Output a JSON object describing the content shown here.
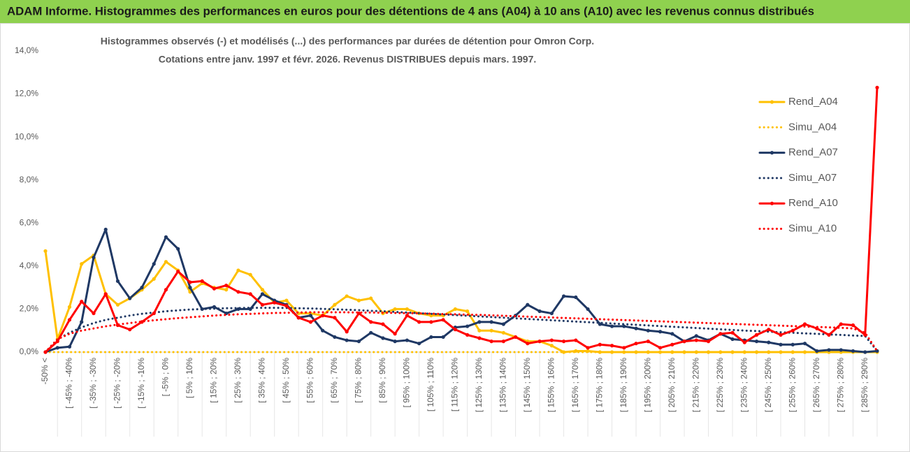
{
  "header": {
    "title": "ADAM Informe. Histogrammes des performances en euros pour des détentions de 4 ans (A04) à 10 ans (A10) avec les revenus connus distribués"
  },
  "chart_data": {
    "type": "line",
    "title": "Histogrammes observés (-) et modélisés (...) des performances par durées de détention pour Omron Corp.",
    "subtitle": "Cotations entre janv. 1997 et févr. 2026. Revenus DISTRIBUES depuis mars. 1997.",
    "categories": [
      "-50% <",
      null,
      "[ -45% ; -40%",
      null,
      "[ -35% ; -30%",
      null,
      "[ -25% ; -20%",
      null,
      "[ -15% ; -10%",
      null,
      "[ -5% ; 0%",
      null,
      "[ 5% ; 10%",
      null,
      "[ 15% ; 20%",
      null,
      "[ 25% ; 30%",
      null,
      "[ 35% ; 40%",
      null,
      "[ 45% ; 50%",
      null,
      "[ 55% ; 60%",
      null,
      "[ 65% ; 70%",
      null,
      "[ 75% ; 80%",
      null,
      "[ 85% ; 90%",
      null,
      "[ 95% ; 100%",
      null,
      "[ 105% ; 110%",
      null,
      "[ 115% ; 120%",
      null,
      "[ 125% ; 130%",
      null,
      "[ 135% ; 140%",
      null,
      "[ 145% ; 150%",
      null,
      "[ 155% ; 160%",
      null,
      "[ 165% ; 170%",
      null,
      "[ 175% ; 180%",
      null,
      "[ 185% ; 190%",
      null,
      "[ 195% ; 200%",
      null,
      "[ 205% ; 210%",
      null,
      "[ 215% ; 220%",
      null,
      "[ 225% ; 230%",
      null,
      "[ 235% ; 240%",
      null,
      "[ 245% ; 250%",
      null,
      "[ 255% ; 260%",
      null,
      "[ 265% ; 270%",
      null,
      "[ 275% ; 280%",
      null,
      "[ 285% ; 290%",
      null
    ],
    "series": [
      {
        "name": "Rend_A04",
        "color": "#FFC000",
        "style": "solid",
        "markers": true,
        "values": [
          4.7,
          0.6,
          2.1,
          4.1,
          4.5,
          2.7,
          2.2,
          2.5,
          2.9,
          3.4,
          4.2,
          3.8,
          2.8,
          3.2,
          3.0,
          2.9,
          3.8,
          3.6,
          2.9,
          2.3,
          2.4,
          1.8,
          1.8,
          1.7,
          2.2,
          2.6,
          2.4,
          2.5,
          1.8,
          2.0,
          2.0,
          1.8,
          1.7,
          1.7,
          2.0,
          1.9,
          1.0,
          1.0,
          0.9,
          0.7,
          0.5,
          0.5,
          0.3,
          0.0,
          0.05,
          0.05,
          0,
          0,
          0,
          0,
          0,
          0,
          0,
          0,
          0,
          0,
          0,
          0,
          0,
          0,
          0,
          0,
          0,
          0,
          0,
          0,
          0,
          0,
          0,
          0
        ]
      },
      {
        "name": "Simu_A04",
        "color": "#FFC000",
        "style": "dotted",
        "markers": false,
        "values": [
          0,
          0,
          0,
          0,
          0,
          0,
          0,
          0,
          0,
          0,
          0,
          0,
          0,
          0,
          0,
          0,
          0,
          0,
          0,
          0,
          0,
          0,
          0,
          0,
          0,
          0,
          0,
          0,
          0,
          0,
          0,
          0,
          0,
          0,
          0,
          0,
          0,
          0,
          0,
          0,
          0,
          0,
          0,
          0,
          0,
          0,
          0,
          0,
          0,
          0,
          0,
          0,
          0,
          0,
          0,
          0,
          0,
          0,
          0,
          0,
          0,
          0,
          0,
          0,
          0,
          0,
          0,
          0,
          0,
          0
        ]
      },
      {
        "name": "Rend_A07",
        "color": "#1F3864",
        "style": "solid",
        "markers": true,
        "values": [
          0,
          0.2,
          0.25,
          1.4,
          4.4,
          5.7,
          3.3,
          2.5,
          3.0,
          4.1,
          5.35,
          4.8,
          3.0,
          2.0,
          2.1,
          1.8,
          2.0,
          2.0,
          2.7,
          2.4,
          2.2,
          1.6,
          1.7,
          1.0,
          0.7,
          0.55,
          0.5,
          0.9,
          0.65,
          0.5,
          0.55,
          0.4,
          0.7,
          0.7,
          1.15,
          1.2,
          1.4,
          1.4,
          1.3,
          1.7,
          2.2,
          1.9,
          1.8,
          2.6,
          2.55,
          2.0,
          1.3,
          1.2,
          1.2,
          1.1,
          1.0,
          0.95,
          0.85,
          0.5,
          0.75,
          0.55,
          0.85,
          0.6,
          0.55,
          0.5,
          0.45,
          0.35,
          0.35,
          0.4,
          0.05,
          0.1,
          0.1,
          0.05,
          0.0,
          0.05
        ]
      },
      {
        "name": "Simu_A07",
        "color": "#1F3864",
        "style": "dotted",
        "markers": false,
        "values": [
          0,
          0.6,
          0.9,
          1.15,
          1.35,
          1.5,
          1.6,
          1.7,
          1.78,
          1.84,
          1.9,
          1.94,
          1.98,
          2.0,
          2.02,
          2.04,
          2.05,
          2.06,
          2.06,
          2.06,
          2.05,
          2.04,
          2.03,
          2.01,
          1.99,
          1.97,
          1.95,
          1.92,
          1.9,
          1.87,
          1.84,
          1.81,
          1.78,
          1.75,
          1.72,
          1.69,
          1.66,
          1.63,
          1.6,
          1.57,
          1.54,
          1.51,
          1.48,
          1.45,
          1.42,
          1.39,
          1.36,
          1.33,
          1.3,
          1.27,
          1.24,
          1.21,
          1.18,
          1.15,
          1.12,
          1.09,
          1.06,
          1.03,
          1.0,
          0.98,
          0.95,
          0.92,
          0.9,
          0.87,
          0.85,
          0.82,
          0.8,
          0.77,
          0.75,
          0.05
        ]
      },
      {
        "name": "Rend_A10",
        "color": "#FF0000",
        "style": "solid",
        "markers": true,
        "values": [
          0,
          0.5,
          1.5,
          2.35,
          1.8,
          2.7,
          1.25,
          1.05,
          1.4,
          1.8,
          2.9,
          3.75,
          3.25,
          3.3,
          2.95,
          3.1,
          2.8,
          2.7,
          2.2,
          2.3,
          2.15,
          1.6,
          1.4,
          1.7,
          1.6,
          0.95,
          1.8,
          1.4,
          1.3,
          0.85,
          1.7,
          1.4,
          1.4,
          1.5,
          1.05,
          0.8,
          0.65,
          0.5,
          0.5,
          0.7,
          0.4,
          0.5,
          0.55,
          0.5,
          0.55,
          0.2,
          0.35,
          0.3,
          0.2,
          0.4,
          0.5,
          0.2,
          0.35,
          0.5,
          0.55,
          0.5,
          0.85,
          0.9,
          0.45,
          0.8,
          1.05,
          0.8,
          1.0,
          1.3,
          1.1,
          0.8,
          1.3,
          1.25,
          0.8,
          12.3
        ]
      },
      {
        "name": "Simu_A10",
        "color": "#FF0000",
        "style": "dotted",
        "markers": false,
        "values": [
          0,
          0.6,
          0.85,
          1.0,
          1.1,
          1.2,
          1.28,
          1.35,
          1.42,
          1.48,
          1.53,
          1.58,
          1.62,
          1.66,
          1.7,
          1.73,
          1.76,
          1.78,
          1.8,
          1.82,
          1.83,
          1.84,
          1.85,
          1.85,
          1.85,
          1.85,
          1.84,
          1.84,
          1.83,
          1.82,
          1.81,
          1.8,
          1.79,
          1.77,
          1.76,
          1.74,
          1.73,
          1.71,
          1.69,
          1.67,
          1.65,
          1.63,
          1.61,
          1.59,
          1.57,
          1.55,
          1.53,
          1.51,
          1.49,
          1.47,
          1.45,
          1.43,
          1.41,
          1.39,
          1.37,
          1.35,
          1.33,
          1.31,
          1.29,
          1.27,
          1.25,
          1.23,
          1.21,
          1.19,
          1.17,
          1.15,
          1.13,
          1.1,
          0.9,
          0.05
        ]
      }
    ],
    "ylim": [
      0,
      14
    ],
    "yticks": [
      {
        "value": 0,
        "label": "0,0%"
      },
      {
        "value": 2,
        "label": "2,0%"
      },
      {
        "value": 4,
        "label": "4,0%"
      },
      {
        "value": 6,
        "label": "6,0%"
      },
      {
        "value": 8,
        "label": "8,0%"
      },
      {
        "value": 10,
        "label": "10,0%"
      },
      {
        "value": 12,
        "label": "12,0%"
      },
      {
        "value": 14,
        "label": "14,0%"
      }
    ],
    "grid": false,
    "legend": "right"
  }
}
